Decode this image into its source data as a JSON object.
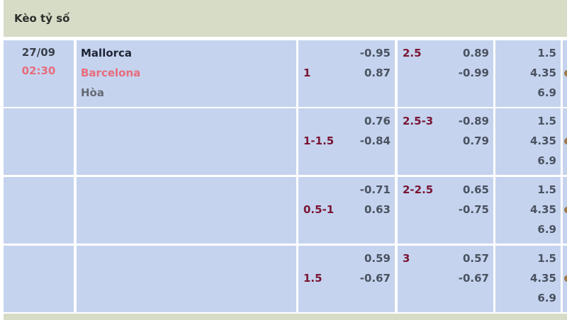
{
  "header": {
    "title": "Kèo tỷ số"
  },
  "match": {
    "date": "27/09",
    "time": "02:30",
    "home": "Mallorca",
    "away": "Barcelona",
    "draw": "Hòa"
  },
  "colors": {
    "cell_bg": "#c5d3ee",
    "header_bg": "#d6dcc6",
    "away_team": "#e86c7c",
    "line": "#7a1432"
  },
  "rows": [
    {
      "handicap": "1",
      "hdp_home": "-0.95",
      "hdp_away": "0.87",
      "ou_line": "2.5",
      "ou_over": "0.89",
      "ou_under": "-0.99",
      "x_home": "1.5",
      "x_draw": "4.35",
      "x_away": "6.9"
    },
    {
      "handicap": "1-1.5",
      "hdp_home": "0.76",
      "hdp_away": "-0.84",
      "ou_line": "2.5-3",
      "ou_over": "-0.89",
      "ou_under": "0.79",
      "x_home": "1.5",
      "x_draw": "4.35",
      "x_away": "6.9"
    },
    {
      "handicap": "0.5-1",
      "hdp_home": "-0.71",
      "hdp_away": "0.63",
      "ou_line": "2-2.5",
      "ou_over": "0.65",
      "ou_under": "-0.75",
      "x_home": "1.5",
      "x_draw": "4.35",
      "x_away": "6.9"
    },
    {
      "handicap": "1.5",
      "hdp_home": "0.59",
      "hdp_away": "-0.67",
      "ou_line": "3",
      "ou_over": "0.57",
      "ou_under": "-0.67",
      "x_home": "1.5",
      "x_draw": "4.35",
      "x_away": "6.9"
    }
  ]
}
